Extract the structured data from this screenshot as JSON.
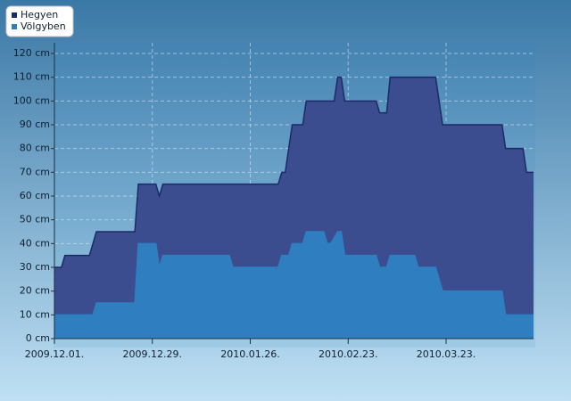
{
  "chart_data": {
    "type": "area",
    "xlim": [
      "2009-12-01",
      "2010-04-17"
    ],
    "xticks": [
      {
        "value": "2009-12-01",
        "label": "2009.12.01."
      },
      {
        "value": "2009-12-29",
        "label": "2009.12.29."
      },
      {
        "value": "2010-01-26",
        "label": "2010.01.26."
      },
      {
        "value": "2010-02-23",
        "label": "2010.02.23."
      },
      {
        "value": "2010-03-23",
        "label": "2010.03.23."
      }
    ],
    "ylim": [
      0,
      120
    ],
    "yticks": [
      {
        "value": 0,
        "label": "0 cm"
      },
      {
        "value": 10,
        "label": "10 cm"
      },
      {
        "value": 20,
        "label": "20 cm"
      },
      {
        "value": 30,
        "label": "30 cm"
      },
      {
        "value": 40,
        "label": "40 cm"
      },
      {
        "value": 50,
        "label": "50 cm"
      },
      {
        "value": 60,
        "label": "60 cm"
      },
      {
        "value": 70,
        "label": "70 cm"
      },
      {
        "value": 80,
        "label": "80 cm"
      },
      {
        "value": 90,
        "label": "90 cm"
      },
      {
        "value": 100,
        "label": "100 cm"
      },
      {
        "value": 110,
        "label": "110 cm"
      },
      {
        "value": 120,
        "label": "120 cm"
      }
    ],
    "grid": true,
    "legend": "top-left",
    "series": [
      {
        "name": "Hegyen",
        "color": "#3b4d8f",
        "line_color": "#1c2a66",
        "x": [
          "2009-12-01",
          "2009-12-03",
          "2009-12-04",
          "2009-12-11",
          "2009-12-13",
          "2009-12-24",
          "2009-12-25",
          "2009-12-30",
          "2009-12-31",
          "2010-01-01",
          "2010-02-03",
          "2010-02-04",
          "2010-02-05",
          "2010-02-07",
          "2010-02-10",
          "2010-02-11",
          "2010-02-19",
          "2010-02-20",
          "2010-02-21",
          "2010-02-22",
          "2010-03-03",
          "2010-03-04",
          "2010-03-06",
          "2010-03-07",
          "2010-03-20",
          "2010-03-22",
          "2010-04-08",
          "2010-04-09",
          "2010-04-14",
          "2010-04-15",
          "2010-04-17"
        ],
        "values": [
          30,
          30,
          35,
          35,
          45,
          45,
          65,
          65,
          60,
          65,
          65,
          70,
          70,
          90,
          90,
          100,
          100,
          110,
          110,
          100,
          100,
          95,
          95,
          110,
          110,
          90,
          90,
          80,
          80,
          70,
          70
        ]
      },
      {
        "name": "Völgyben",
        "color": "#2e7ec0",
        "line_color": "#2e7ec0",
        "x": [
          "2009-12-01",
          "2009-12-12",
          "2009-12-13",
          "2009-12-24",
          "2009-12-25",
          "2009-12-30",
          "2009-12-31",
          "2010-01-01",
          "2010-01-20",
          "2010-01-21",
          "2010-02-03",
          "2010-02-04",
          "2010-02-06",
          "2010-02-07",
          "2010-02-10",
          "2010-02-11",
          "2010-02-16",
          "2010-02-17",
          "2010-02-18",
          "2010-02-20",
          "2010-02-21",
          "2010-02-22",
          "2010-03-03",
          "2010-03-04",
          "2010-03-06",
          "2010-03-07",
          "2010-03-14",
          "2010-03-15",
          "2010-03-20",
          "2010-03-22",
          "2010-04-08",
          "2010-04-09",
          "2010-04-17"
        ],
        "values": [
          10,
          10,
          15,
          15,
          40,
          40,
          30,
          35,
          35,
          30,
          30,
          35,
          35,
          40,
          40,
          45,
          45,
          40,
          40,
          45,
          45,
          35,
          35,
          30,
          30,
          35,
          35,
          30,
          30,
          20,
          20,
          10,
          10
        ]
      }
    ]
  }
}
